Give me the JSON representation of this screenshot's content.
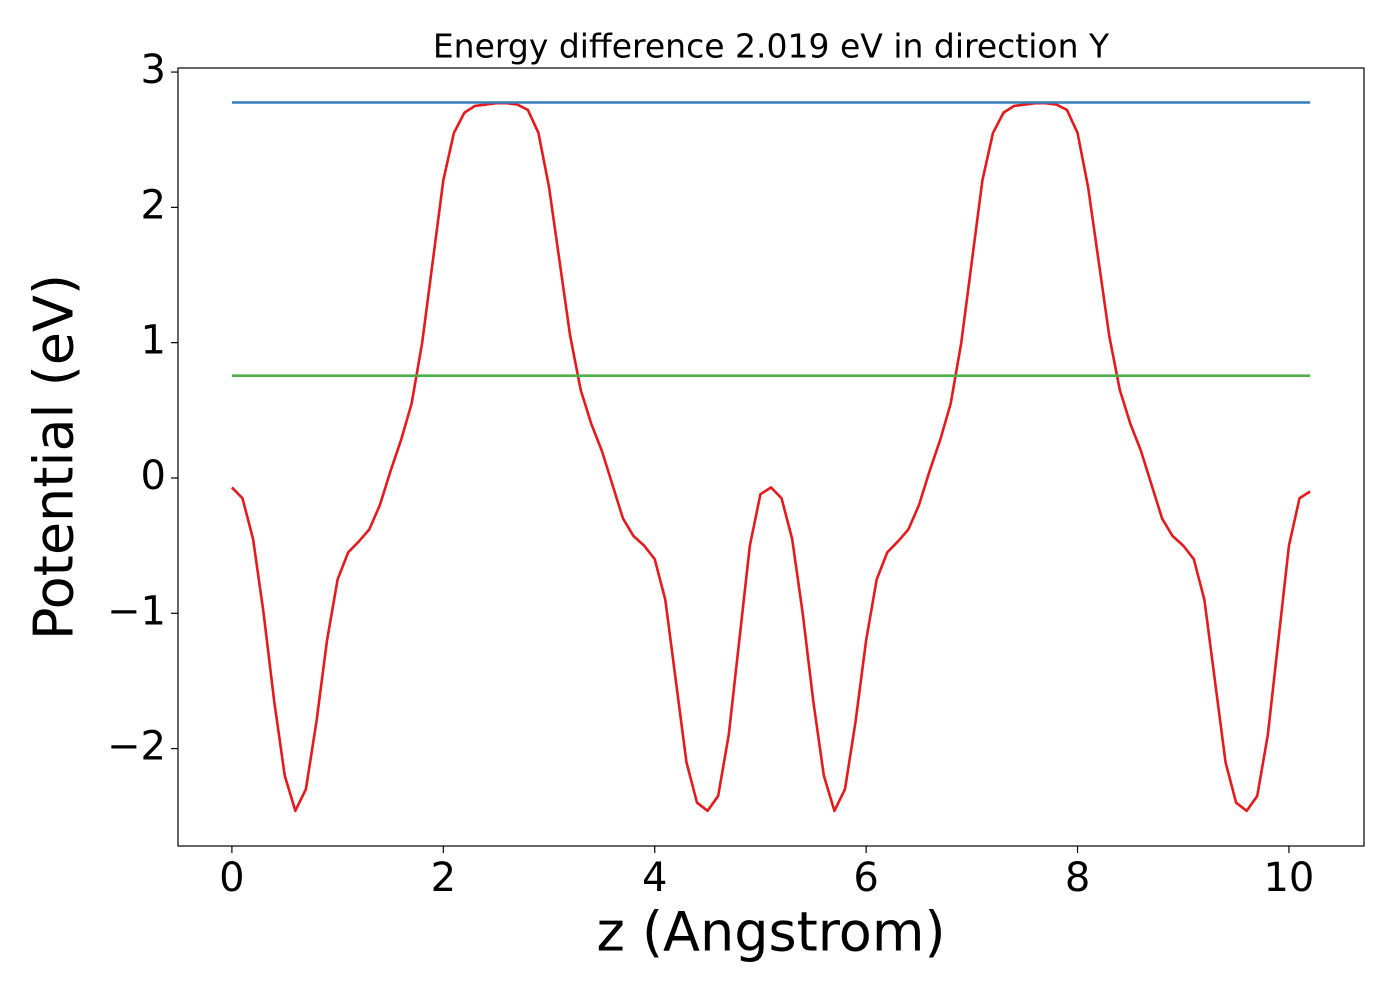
{
  "chart_data": {
    "type": "line",
    "title": "Energy difference 2.019 eV in direction Y",
    "xlabel": "z (Angstrom)",
    "ylabel": "Potential (eV)",
    "xlim": [
      -0.51,
      10.71
    ],
    "ylim": [
      -2.72,
      3.03
    ],
    "xticks": [
      0,
      2,
      4,
      6,
      8,
      10
    ],
    "yticks": [
      {
        "value": -2,
        "label": "−2"
      },
      {
        "value": -1,
        "label": "−1"
      },
      0,
      1,
      2,
      3
    ],
    "series": [
      {
        "color": "#e41a1c",
        "x": [
          0,
          0.1,
          0.2,
          0.3,
          0.4,
          0.5,
          0.6,
          0.7,
          0.8,
          0.9,
          1.0,
          1.1,
          1.2,
          1.3,
          1.4,
          1.5,
          1.6,
          1.7,
          1.8,
          1.9,
          2.0,
          2.1,
          2.2,
          2.3,
          2.4,
          2.5,
          2.6,
          2.7,
          2.8,
          2.9,
          3.0,
          3.1,
          3.2,
          3.3,
          3.4,
          3.5,
          3.6,
          3.7,
          3.8,
          3.9,
          4.0,
          4.1,
          4.2,
          4.3,
          4.4,
          4.5,
          4.6,
          4.7,
          4.8,
          4.9,
          5.0,
          5.1,
          5.2,
          5.3,
          5.4,
          5.5,
          5.6,
          5.7,
          5.8,
          5.9,
          6.0,
          6.1,
          6.2,
          6.3,
          6.4,
          6.5,
          6.6,
          6.7,
          6.8,
          6.9,
          7.0,
          7.1,
          7.2,
          7.3,
          7.4,
          7.5,
          7.6,
          7.7,
          7.8,
          7.9,
          8.0,
          8.1,
          8.2,
          8.3,
          8.4,
          8.5,
          8.6,
          8.7,
          8.8,
          8.9,
          9.0,
          9.1,
          9.2,
          9.3,
          9.4,
          9.5,
          9.6,
          9.7,
          9.8,
          9.9,
          10.0,
          10.1,
          10.2
        ],
        "values": [
          -0.07,
          -0.15,
          -0.45,
          -1.0,
          -1.65,
          -2.2,
          -2.46,
          -2.3,
          -1.8,
          -1.2,
          -0.75,
          -0.55,
          -0.47,
          -0.38,
          -0.2,
          0.05,
          0.28,
          0.55,
          1.0,
          1.6,
          2.2,
          2.55,
          2.7,
          2.75,
          2.76,
          2.77,
          2.77,
          2.76,
          2.72,
          2.55,
          2.15,
          1.6,
          1.05,
          0.65,
          0.4,
          0.2,
          -0.05,
          -0.3,
          -0.43,
          -0.5,
          -0.6,
          -0.9,
          -1.5,
          -2.1,
          -2.4,
          -2.46,
          -2.35,
          -1.9,
          -1.2,
          -0.5,
          -0.12,
          -0.07,
          -0.15,
          -0.45,
          -1.0,
          -1.65,
          -2.2,
          -2.46,
          -2.3,
          -1.8,
          -1.2,
          -0.75,
          -0.55,
          -0.47,
          -0.38,
          -0.2,
          0.05,
          0.28,
          0.55,
          1.0,
          1.6,
          2.2,
          2.55,
          2.7,
          2.75,
          2.76,
          2.77,
          2.77,
          2.76,
          2.72,
          2.55,
          2.15,
          1.6,
          1.05,
          0.65,
          0.4,
          0.2,
          -0.05,
          -0.3,
          -0.43,
          -0.5,
          -0.6,
          -0.9,
          -1.5,
          -2.1,
          -2.4,
          -2.46,
          -2.35,
          -1.9,
          -1.2,
          -0.5,
          -0.15,
          -0.1
        ]
      },
      {
        "color": "#377eb8",
        "x": [
          0,
          10.2
        ],
        "values": [
          2.775,
          2.775
        ]
      },
      {
        "color": "#4daf4a",
        "x": [
          0,
          10.2
        ],
        "values": [
          0.756,
          0.756
        ]
      }
    ]
  }
}
